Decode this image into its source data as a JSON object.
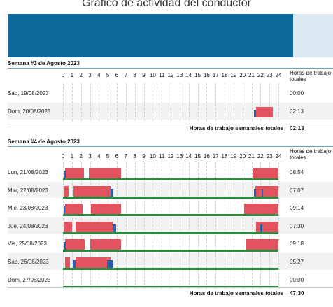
{
  "title": "Gráfico de actividad del conductor",
  "colors": {
    "banner": "#0e6898",
    "rest": "#2e8b3e",
    "drive": "#e0535f",
    "work": "#2a5fa8",
    "header_line": "#6aa0c8"
  },
  "hour_labels": [
    "0",
    "1",
    "2",
    "3",
    "4",
    "5",
    "6",
    "7",
    "8",
    "9",
    "10",
    "11",
    "12",
    "13",
    "14",
    "15",
    "16",
    "17",
    "18",
    "19",
    "20",
    "21",
    "22",
    "23",
    "24"
  ],
  "hours_header": "Horas de trabajo totales",
  "weeks": [
    {
      "title": "Semana #3 de Agosto 2023",
      "total_label": "Horas de trabajo semanales totales",
      "total": "02:13",
      "days": [
        {
          "label": "Sáb, 19/08/2023",
          "total": "00:00",
          "rest": [],
          "drive": [],
          "work": []
        },
        {
          "label": "Dom, 20/08/2023",
          "total": "02:13",
          "rest": [],
          "drive": [
            [
              21.5,
              23.4
            ]
          ],
          "work": [
            [
              21.3,
              21.5
            ]
          ]
        }
      ]
    },
    {
      "title": "Semana #4 de Agosto 2023",
      "total_label": "Horas de trabajo semanales totales",
      "total": "47:30",
      "days": [
        {
          "label": "Lun, 21/08/2023",
          "total": "08:54",
          "rest": [
            [
              0,
              24
            ]
          ],
          "drive": [
            [
              0.2,
              2.3
            ],
            [
              2.9,
              6.5
            ],
            [
              21.2,
              24
            ]
          ],
          "work": [
            [
              0.1,
              0.3
            ],
            [
              21.1,
              21.2
            ]
          ]
        },
        {
          "label": "Mar, 22/08/2023",
          "total": "07:07",
          "rest": [
            [
              0,
              24
            ]
          ],
          "drive": [
            [
              0.1,
              0.6
            ],
            [
              1.2,
              5.3
            ],
            [
              21.4,
              24
            ]
          ],
          "work": [
            [
              5.3,
              5.6
            ],
            [
              21.3,
              21.5
            ],
            [
              22.1,
              22.3
            ]
          ]
        },
        {
          "label": "Mie, 23/08/2023",
          "total": "09:14",
          "rest": [
            [
              0,
              24
            ]
          ],
          "drive": [
            [
              0.2,
              2.2
            ],
            [
              3.1,
              6.5
            ],
            [
              20.2,
              24
            ]
          ],
          "work": [
            [
              0.1,
              0.2
            ]
          ]
        },
        {
          "label": "Jue, 24/08/2023",
          "total": "07:30",
          "rest": [
            [
              0,
              24
            ]
          ],
          "drive": [
            [
              0.1,
              1.0
            ],
            [
              1.4,
              5.5
            ],
            [
              21.5,
              24
            ]
          ],
          "work": [
            [
              5.5,
              5.9
            ],
            [
              22.0,
              22.2
            ]
          ]
        },
        {
          "label": "Vie, 25/08/2023",
          "total": "09:18",
          "rest": [
            [
              0,
              24
            ]
          ],
          "drive": [
            [
              0.2,
              2.4
            ],
            [
              3.0,
              6.5
            ],
            [
              20.4,
              24
            ]
          ],
          "work": [
            [
              0.1,
              0.3
            ]
          ]
        },
        {
          "label": "Sáb, 26/08/2023",
          "total": "05:27",
          "rest": [
            [
              0,
              24
            ]
          ],
          "drive": [
            [
              0.2,
              0.8
            ],
            [
              1.4,
              5.3
            ]
          ],
          "work": [
            [
              1.1,
              1.4
            ],
            [
              4.9,
              5.6
            ]
          ]
        },
        {
          "label": "Dom, 27/08/2023",
          "total": "00:00",
          "rest": [
            [
              0,
              24
            ]
          ],
          "drive": [],
          "work": []
        }
      ]
    }
  ]
}
